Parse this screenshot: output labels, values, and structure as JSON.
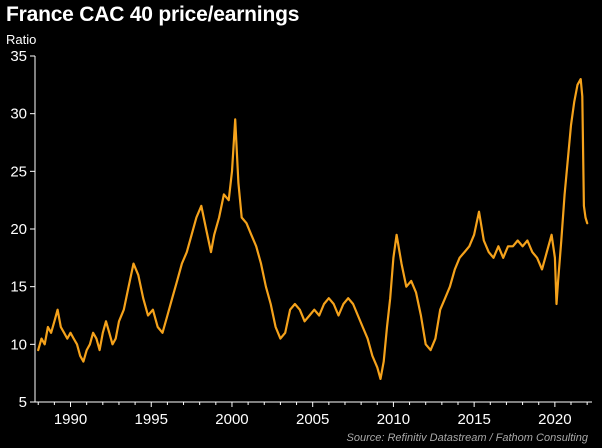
{
  "chart_data": {
    "type": "line",
    "title": "France CAC 40 price/earnings",
    "subtitle": "Ratio",
    "source": "Source: Refinitiv Datastream / Fathom Consulting",
    "xlabel": "",
    "ylabel": "",
    "xlim": [
      1987.8,
      2022.3
    ],
    "ylim": [
      5,
      35
    ],
    "x_ticks": [
      1990,
      1995,
      2000,
      2005,
      2010,
      2015,
      2020
    ],
    "x_tick_labels": [
      "1990",
      "1995",
      "2000",
      "2005",
      "2010",
      "2015",
      "2020"
    ],
    "y_ticks": [
      5,
      10,
      15,
      20,
      25,
      30,
      35
    ],
    "y_tick_labels": [
      "5",
      "10",
      "15",
      "20",
      "25",
      "30",
      "35"
    ],
    "grid": false,
    "legend": "none",
    "series": [
      {
        "color": "#f5a21b",
        "x": [
          1988.0,
          1988.2,
          1988.4,
          1988.6,
          1988.8,
          1989.0,
          1989.2,
          1989.4,
          1989.6,
          1989.8,
          1990.0,
          1990.2,
          1990.4,
          1990.6,
          1990.8,
          1991.0,
          1991.2,
          1991.4,
          1991.6,
          1991.8,
          1992.0,
          1992.2,
          1992.4,
          1992.6,
          1992.8,
          1993.0,
          1993.3,
          1993.6,
          1993.9,
          1994.2,
          1994.5,
          1994.8,
          1995.1,
          1995.4,
          1995.7,
          1996.0,
          1996.3,
          1996.6,
          1996.9,
          1997.2,
          1997.5,
          1997.8,
          1998.1,
          1998.4,
          1998.7,
          1998.9,
          1999.2,
          1999.5,
          1999.8,
          2000.0,
          2000.2,
          2000.4,
          2000.6,
          2000.9,
          2001.2,
          2001.5,
          2001.8,
          2002.1,
          2002.4,
          2002.7,
          2003.0,
          2003.3,
          2003.6,
          2003.9,
          2004.2,
          2004.5,
          2004.8,
          2005.1,
          2005.4,
          2005.7,
          2006.0,
          2006.3,
          2006.6,
          2006.9,
          2007.2,
          2007.5,
          2007.8,
          2008.1,
          2008.4,
          2008.7,
          2009.0,
          2009.2,
          2009.4,
          2009.6,
          2009.8,
          2010.0,
          2010.2,
          2010.5,
          2010.8,
          2011.1,
          2011.4,
          2011.7,
          2012.0,
          2012.3,
          2012.6,
          2012.9,
          2013.2,
          2013.5,
          2013.8,
          2014.1,
          2014.4,
          2014.7,
          2015.0,
          2015.3,
          2015.6,
          2015.9,
          2016.2,
          2016.5,
          2016.8,
          2017.1,
          2017.4,
          2017.7,
          2018.0,
          2018.3,
          2018.6,
          2018.9,
          2019.2,
          2019.5,
          2019.8,
          2020.0,
          2020.1,
          2020.2,
          2020.4,
          2020.6,
          2020.8,
          2021.0,
          2021.2,
          2021.4,
          2021.6,
          2021.7,
          2021.8,
          2021.9,
          2022.0
        ],
        "y": [
          9.5,
          10.5,
          10.0,
          11.5,
          11.0,
          12.0,
          13.0,
          11.5,
          11.0,
          10.5,
          11.0,
          10.5,
          10.0,
          9.0,
          8.5,
          9.5,
          10.0,
          11.0,
          10.5,
          9.5,
          11.0,
          12.0,
          11.0,
          10.0,
          10.5,
          12.0,
          13.0,
          15.0,
          17.0,
          16.0,
          14.0,
          12.5,
          13.0,
          11.5,
          11.0,
          12.5,
          14.0,
          15.5,
          17.0,
          18.0,
          19.5,
          21.0,
          22.0,
          20.0,
          18.0,
          19.5,
          21.0,
          23.0,
          22.5,
          25.0,
          29.5,
          24.0,
          21.0,
          20.5,
          19.5,
          18.5,
          17.0,
          15.0,
          13.5,
          11.5,
          10.5,
          11.0,
          13.0,
          13.5,
          13.0,
          12.0,
          12.5,
          13.0,
          12.5,
          13.5,
          14.0,
          13.5,
          12.5,
          13.5,
          14.0,
          13.5,
          12.5,
          11.5,
          10.5,
          9.0,
          8.0,
          7.0,
          8.5,
          11.5,
          14.0,
          17.5,
          19.5,
          17.0,
          15.0,
          15.5,
          14.5,
          12.5,
          10.0,
          9.5,
          10.5,
          13.0,
          14.0,
          15.0,
          16.5,
          17.5,
          18.0,
          18.5,
          19.5,
          21.5,
          19.0,
          18.0,
          17.5,
          18.5,
          17.5,
          18.5,
          18.5,
          19.0,
          18.5,
          19.0,
          18.0,
          17.5,
          16.5,
          18.0,
          19.5,
          17.5,
          13.5,
          15.5,
          19.0,
          23.0,
          26.0,
          29.0,
          31.0,
          32.5,
          33.0,
          31.5,
          22.0,
          21.0,
          20.5
        ]
      }
    ]
  }
}
